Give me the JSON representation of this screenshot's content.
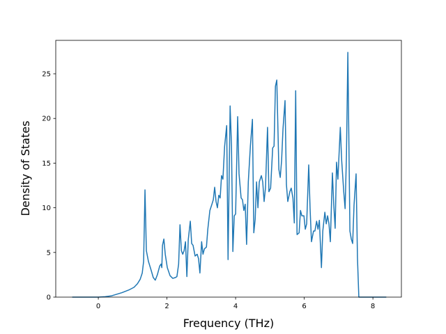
{
  "chart_data": {
    "type": "line",
    "xlabel": "Frequency (THz)",
    "ylabel": "Density of States",
    "color": "#1f77b4",
    "xlim": [
      -1.24,
      8.83
    ],
    "ylim": [
      0,
      28.74
    ],
    "xticks": [
      0,
      2,
      4,
      6,
      8
    ],
    "yticks": [
      0,
      5,
      10,
      15,
      20,
      25
    ],
    "x": [
      -0.76,
      -0.4,
      0,
      0.2,
      0.39,
      0.69,
      0.89,
      1.04,
      1.14,
      1.22,
      1.28,
      1.32,
      1.36,
      1.4,
      1.46,
      1.54,
      1.6,
      1.66,
      1.72,
      1.79,
      1.83,
      1.85,
      1.87,
      1.91,
      1.95,
      2.01,
      2.09,
      2.17,
      2.25,
      2.29,
      2.34,
      2.38,
      2.42,
      2.46,
      2.5,
      2.54,
      2.58,
      2.62,
      2.68,
      2.72,
      2.76,
      2.82,
      2.88,
      2.92,
      2.96,
      3.01,
      3.05,
      3.09,
      3.15,
      3.19,
      3.25,
      3.31,
      3.35,
      3.39,
      3.43,
      3.47,
      3.51,
      3.55,
      3.59,
      3.63,
      3.68,
      3.74,
      3.78,
      3.84,
      3.88,
      3.92,
      3.96,
      4.0,
      4.06,
      4.1,
      4.16,
      4.2,
      4.24,
      4.28,
      4.32,
      4.37,
      4.43,
      4.49,
      4.53,
      4.57,
      4.61,
      4.65,
      4.69,
      4.75,
      4.79,
      4.83,
      4.87,
      4.93,
      4.97,
      5.02,
      5.08,
      5.12,
      5.16,
      5.2,
      5.26,
      5.3,
      5.34,
      5.38,
      5.44,
      5.48,
      5.52,
      5.58,
      5.62,
      5.67,
      5.71,
      5.75,
      5.79,
      5.85,
      5.89,
      5.93,
      5.99,
      6.03,
      6.07,
      6.13,
      6.17,
      6.21,
      6.27,
      6.31,
      6.36,
      6.4,
      6.44,
      6.5,
      6.54,
      6.6,
      6.64,
      6.68,
      6.72,
      6.76,
      6.82,
      6.86,
      6.9,
      6.94,
      6.98,
      7.05,
      7.09,
      7.15,
      7.19,
      7.23,
      7.27,
      7.33,
      7.37,
      7.41,
      7.45,
      7.51,
      7.55,
      7.59,
      8.0,
      8.39
    ],
    "values": [
      0,
      0,
      0,
      0.05,
      0.15,
      0.5,
      0.8,
      1.1,
      1.5,
      2.0,
      2.7,
      4,
      12,
      5.2,
      4,
      3,
      2.2,
      1.9,
      2.5,
      3.5,
      3.7,
      3.3,
      5.8,
      6.5,
      4.8,
      3.3,
      2.4,
      2.1,
      2.2,
      2.3,
      3.7,
      8.1,
      5.2,
      4.8,
      5.2,
      6.2,
      2.3,
      6.4,
      8.5,
      6,
      5.8,
      4.6,
      4.8,
      4.3,
      2.7,
      6.2,
      4.8,
      5.4,
      5.6,
      7.6,
      9.7,
      10.4,
      10.9,
      12.3,
      10.7,
      10,
      11.4,
      11.1,
      13.6,
      13.2,
      16.9,
      19.2,
      4.2,
      21.4,
      16.9,
      5.1,
      9.1,
      9.3,
      20.2,
      13.8,
      11.1,
      10.9,
      9.7,
      10.4,
      5.9,
      12.9,
      16.9,
      19.9,
      7.2,
      8.7,
      12.9,
      10,
      12.9,
      13.6,
      12.9,
      10.7,
      12.2,
      19,
      11.8,
      12.2,
      16.7,
      16.9,
      23.6,
      24.3,
      14.3,
      13.4,
      15.3,
      18.8,
      22,
      12.6,
      10.7,
      11.8,
      12.2,
      11.1,
      8.3,
      23.1,
      7,
      7.2,
      9.7,
      9.1,
      9.1,
      7.6,
      8.2,
      14.8,
      9.9,
      6.2,
      7.4,
      7.4,
      8.5,
      7.6,
      8.6,
      3.3,
      7.4,
      9.5,
      8.2,
      9.1,
      8.2,
      6.2,
      13.9,
      10.3,
      7.7,
      15.1,
      13.2,
      19,
      15.3,
      11.8,
      9.9,
      16,
      27.4,
      7.4,
      6.5,
      6,
      10.3,
      13.8,
      4.4,
      0,
      0,
      0
    ]
  }
}
